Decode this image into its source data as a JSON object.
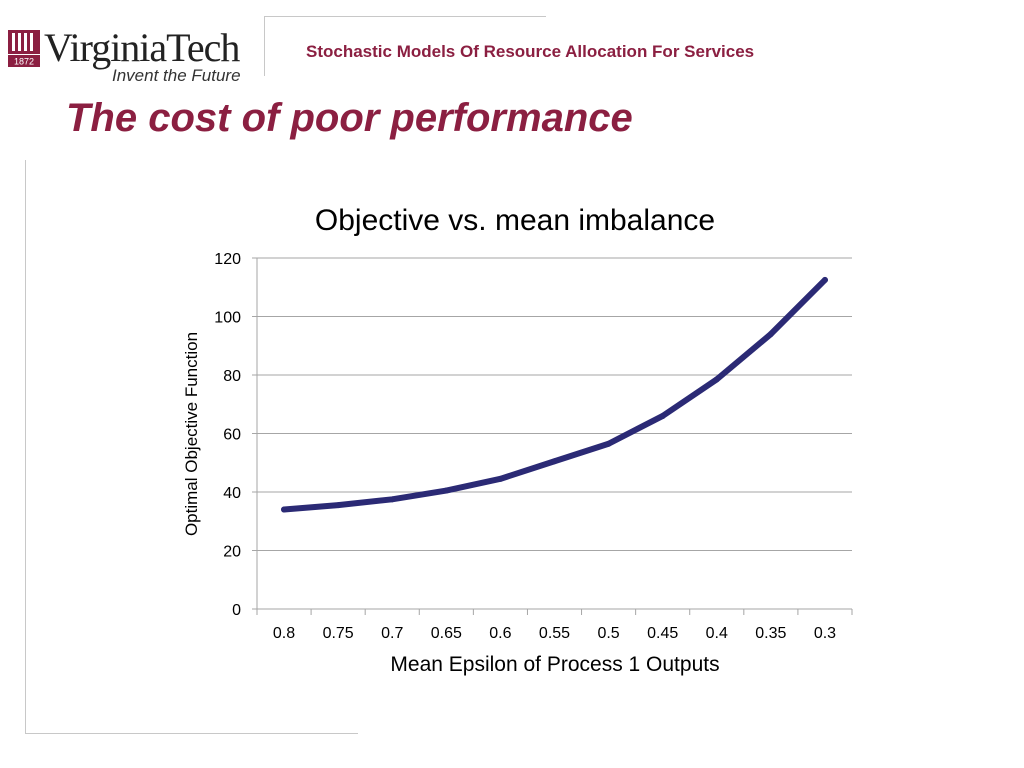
{
  "header": {
    "logo_text": "VirginiaTech",
    "logo_tagline": "Invent the Future",
    "logo_year": "1872",
    "course_title": "Stochastic Models Of Resource Allocation For Services"
  },
  "slide": {
    "title": "The cost of poor performance"
  },
  "colors": {
    "maroon": "#8b1f41",
    "line": "#2b2a75",
    "grid": "#a6a6a6"
  },
  "chart_data": {
    "type": "line",
    "title": "Objective vs. mean imbalance",
    "xlabel": "Mean Epsilon of Process 1 Outputs",
    "ylabel": "Optimal Objective Function",
    "categories": [
      "0.8",
      "0.75",
      "0.7",
      "0.65",
      "0.6",
      "0.55",
      "0.5",
      "0.45",
      "0.4",
      "0.35",
      "0.3"
    ],
    "series": [
      {
        "values": [
          34,
          35.5,
          37.5,
          40.5,
          44.5,
          50.5,
          56.5,
          66,
          78.5,
          94,
          112.5
        ]
      }
    ],
    "ylim": [
      0,
      120
    ],
    "yticks": [
      0,
      20,
      40,
      60,
      80,
      100,
      120
    ],
    "grid": true,
    "legend": "none"
  }
}
